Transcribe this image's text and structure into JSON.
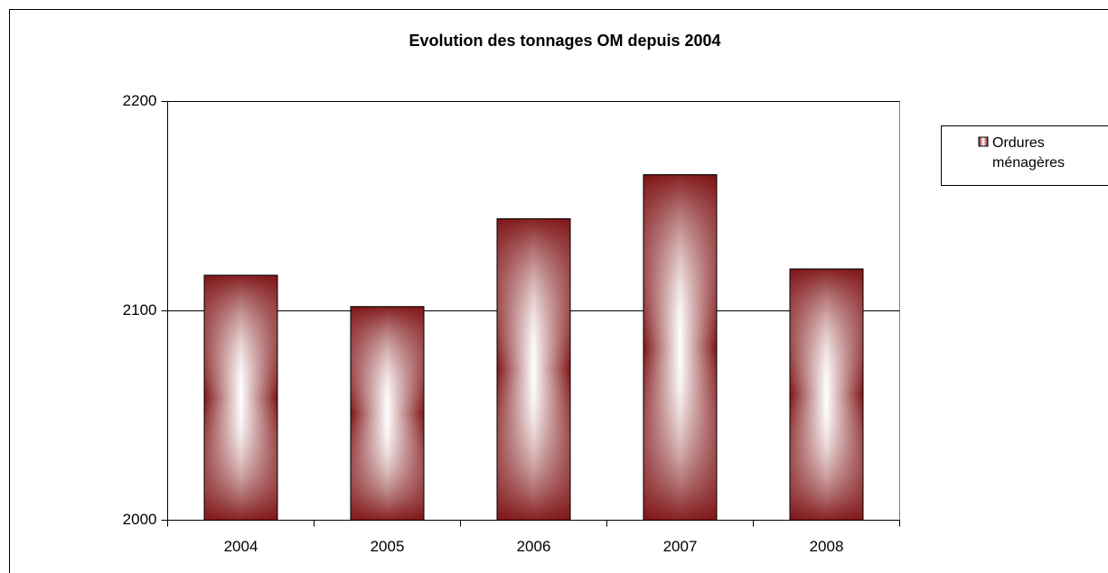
{
  "chart_data": {
    "type": "bar",
    "title": "Evolution des tonnages OM depuis 2004",
    "categories": [
      "2004",
      "2005",
      "2006",
      "2007",
      "2008"
    ],
    "series": [
      {
        "name": "Ordures ménagères",
        "color": "#7f1416",
        "values": [
          2117,
          2102,
          2144,
          2165,
          2120
        ]
      }
    ],
    "ylim": [
      2000,
      2200
    ],
    "yticks": [
      2000,
      2100,
      2200
    ],
    "grid": true,
    "legend": "right"
  }
}
